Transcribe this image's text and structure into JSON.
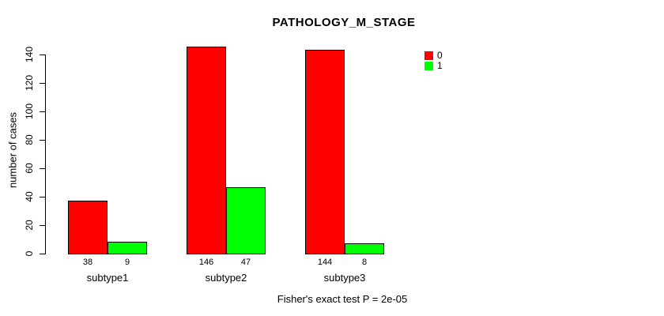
{
  "title": "PATHOLOGY_M_STAGE",
  "ylabel": "number of cases",
  "footer": "Fisher's exact test P = 2e-05",
  "legend": [
    {
      "label": "0",
      "color": "#FF0000"
    },
    {
      "label": "1",
      "color": "#00FF00"
    }
  ],
  "colors": {
    "bar_red": "#FF0000",
    "bar_green": "#00FF00",
    "axis": "#000000",
    "background": "#FFFFFF"
  },
  "chart_data": {
    "type": "bar",
    "title": "PATHOLOGY_M_STAGE",
    "xlabel": "",
    "ylabel": "number of cases",
    "categories": [
      "subtype1",
      "subtype2",
      "subtype3"
    ],
    "series": [
      {
        "name": "0",
        "color": "#FF0000",
        "values": [
          38,
          146,
          144
        ]
      },
      {
        "name": "1",
        "color": "#00FF00",
        "values": [
          9,
          47,
          8
        ]
      }
    ],
    "bar_value_labels": [
      [
        38,
        9
      ],
      [
        146,
        47
      ],
      [
        144,
        8
      ]
    ],
    "ylim": [
      0,
      140
    ],
    "yticks": [
      0,
      20,
      40,
      60,
      80,
      100,
      120,
      140
    ],
    "grid": false,
    "legend_position": "top-right",
    "annotation": "Fisher's exact test P = 2e-05"
  }
}
